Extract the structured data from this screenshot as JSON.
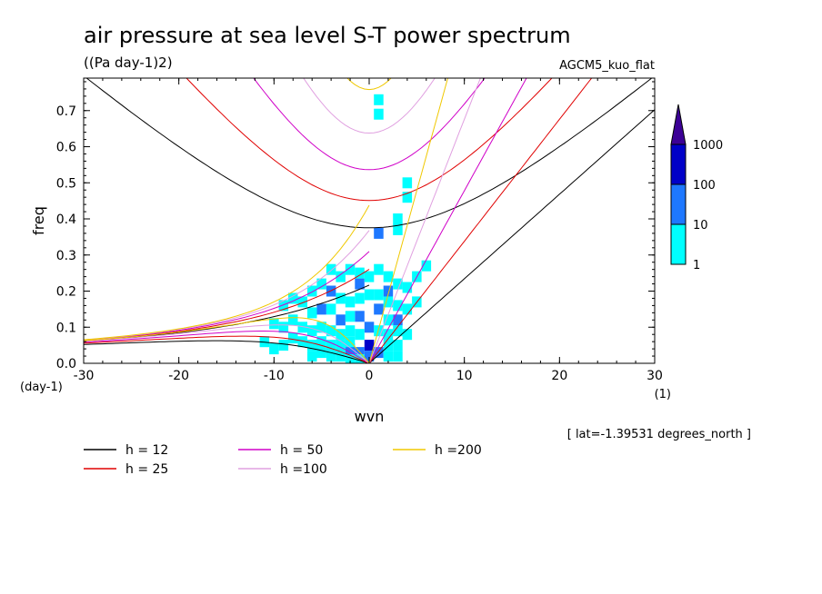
{
  "chart_data": {
    "type": "heatmap",
    "title": "air pressure at sea level S-T power spectrum",
    "subtitle": "((Pa day-1)2)",
    "model_label": "AGCM5_kuo_flat",
    "xlabel": "wvn",
    "ylabel": "freq",
    "x_unit": "(1)",
    "y_unit": "(day-1)",
    "xlim": [
      -30,
      30
    ],
    "ylim": [
      0,
      0.79
    ],
    "x_ticks": [
      "-30",
      "-20",
      "-10",
      "0",
      "10",
      "20",
      "30"
    ],
    "y_ticks": [
      "0.0",
      "0.1",
      "0.2",
      "0.3",
      "0.4",
      "0.5",
      "0.6",
      "0.7"
    ],
    "annotation": "[ lat=-1.39531 degrees_north ]",
    "colorbar": {
      "labels": [
        "1",
        "10",
        "100",
        "1000"
      ],
      "colors": [
        "#00ffff",
        "#1e78ff",
        "#0000c8",
        "#3c0096"
      ]
    },
    "legend": [
      {
        "label": "h = 12",
        "color": "#000000"
      },
      {
        "label": "h = 25",
        "color": "#e00000"
      },
      {
        "label": "h = 50",
        "color": "#d000c8"
      },
      {
        "label": "h =100",
        "color": "#e0a0e0"
      },
      {
        "label": "h =200",
        "color": "#f0c800"
      }
    ],
    "equivalent_depths": [
      12,
      25,
      50,
      100,
      200
    ],
    "spectrum_cells": [
      {
        "x": 0,
        "y": 0.05,
        "level": 3
      },
      {
        "x": -1,
        "y": 0.03,
        "level": 2
      },
      {
        "x": 1,
        "y": 0.03,
        "level": 2
      },
      {
        "x": 0,
        "y": 0.02,
        "level": 2
      },
      {
        "x": -2,
        "y": 0.04,
        "level": 2
      },
      {
        "x": 0,
        "y": 0.1,
        "level": 2
      },
      {
        "x": -1,
        "y": 0.13,
        "level": 2
      },
      {
        "x": -3,
        "y": 0.12,
        "level": 2
      },
      {
        "x": 1,
        "y": 0.15,
        "level": 2
      },
      {
        "x": -1,
        "y": 0.22,
        "level": 2
      },
      {
        "x": -4,
        "y": 0.2,
        "level": 2
      },
      {
        "x": 2,
        "y": 0.2,
        "level": 2
      },
      {
        "x": -5,
        "y": 0.15,
        "level": 2
      },
      {
        "x": 3,
        "y": 0.12,
        "level": 2
      },
      {
        "x": 1,
        "y": 0.36,
        "level": 2
      },
      {
        "x": 1,
        "y": 0.73,
        "level": 1
      },
      {
        "x": 1,
        "y": 0.69,
        "level": 1
      },
      {
        "x": 4,
        "y": 0.5,
        "level": 1
      },
      {
        "x": 4,
        "y": 0.46,
        "level": 1
      },
      {
        "x": 3,
        "y": 0.4,
        "level": 1
      },
      {
        "x": 3,
        "y": 0.37,
        "level": 1
      },
      {
        "x": 6,
        "y": 0.27,
        "level": 1
      },
      {
        "x": 5,
        "y": 0.24,
        "level": 1
      },
      {
        "x": -4,
        "y": 0.26,
        "level": 1
      },
      {
        "x": -3,
        "y": 0.24,
        "level": 1
      },
      {
        "x": -2,
        "y": 0.26,
        "level": 1
      },
      {
        "x": -1,
        "y": 0.25,
        "level": 1
      },
      {
        "x": 0,
        "y": 0.24,
        "level": 1
      },
      {
        "x": 1,
        "y": 0.26,
        "level": 1
      },
      {
        "x": 2,
        "y": 0.24,
        "level": 1
      },
      {
        "x": 3,
        "y": 0.22,
        "level": 1
      },
      {
        "x": 4,
        "y": 0.21,
        "level": 1
      },
      {
        "x": -5,
        "y": 0.22,
        "level": 1
      },
      {
        "x": -6,
        "y": 0.2,
        "level": 1
      },
      {
        "x": -7,
        "y": 0.17,
        "level": 1
      },
      {
        "x": -8,
        "y": 0.18,
        "level": 1
      },
      {
        "x": -9,
        "y": 0.16,
        "level": 1
      },
      {
        "x": -6,
        "y": 0.14,
        "level": 1
      },
      {
        "x": -4,
        "y": 0.15,
        "level": 1
      },
      {
        "x": -3,
        "y": 0.18,
        "level": 1
      },
      {
        "x": -2,
        "y": 0.17,
        "level": 1
      },
      {
        "x": -1,
        "y": 0.18,
        "level": 1
      },
      {
        "x": 0,
        "y": 0.19,
        "level": 1
      },
      {
        "x": 1,
        "y": 0.19,
        "level": 1
      },
      {
        "x": 2,
        "y": 0.17,
        "level": 1
      },
      {
        "x": 3,
        "y": 0.16,
        "level": 1
      },
      {
        "x": 4,
        "y": 0.15,
        "level": 1
      },
      {
        "x": 5,
        "y": 0.17,
        "level": 1
      },
      {
        "x": -10,
        "y": 0.11,
        "level": 1
      },
      {
        "x": -9,
        "y": 0.1,
        "level": 1
      },
      {
        "x": -8,
        "y": 0.12,
        "level": 1
      },
      {
        "x": -7,
        "y": 0.1,
        "level": 1
      },
      {
        "x": -6,
        "y": 0.09,
        "level": 1
      },
      {
        "x": -5,
        "y": 0.1,
        "level": 1
      },
      {
        "x": -4,
        "y": 0.09,
        "level": 1
      },
      {
        "x": -3,
        "y": 0.08,
        "level": 1
      },
      {
        "x": -2,
        "y": 0.09,
        "level": 1
      },
      {
        "x": -1,
        "y": 0.08,
        "level": 1
      },
      {
        "x": 1,
        "y": 0.09,
        "level": 1
      },
      {
        "x": 2,
        "y": 0.08,
        "level": 1
      },
      {
        "x": 3,
        "y": 0.09,
        "level": 1
      },
      {
        "x": 4,
        "y": 0.08,
        "level": 1
      },
      {
        "x": 2,
        "y": 0.12,
        "level": 1
      },
      {
        "x": -2,
        "y": 0.13,
        "level": 1
      },
      {
        "x": -8,
        "y": 0.07,
        "level": 1
      },
      {
        "x": -7,
        "y": 0.06,
        "level": 1
      },
      {
        "x": -6,
        "y": 0.05,
        "level": 1
      },
      {
        "x": -5,
        "y": 0.06,
        "level": 1
      },
      {
        "x": -4,
        "y": 0.05,
        "level": 1
      },
      {
        "x": -3,
        "y": 0.05,
        "level": 1
      },
      {
        "x": -2,
        "y": 0.06,
        "level": 1
      },
      {
        "x": 2,
        "y": 0.05,
        "level": 1
      },
      {
        "x": 3,
        "y": 0.05,
        "level": 1
      },
      {
        "x": -10,
        "y": 0.04,
        "level": 1
      },
      {
        "x": -9,
        "y": 0.05,
        "level": 1
      },
      {
        "x": -11,
        "y": 0.06,
        "level": 1
      },
      {
        "x": -4,
        "y": 0.02,
        "level": 1
      },
      {
        "x": -3,
        "y": 0.02,
        "level": 1
      },
      {
        "x": -2,
        "y": 0.01,
        "level": 1
      },
      {
        "x": -1,
        "y": 0.01,
        "level": 1
      },
      {
        "x": 2,
        "y": 0.02,
        "level": 1
      },
      {
        "x": 3,
        "y": 0.02,
        "level": 1
      },
      {
        "x": -5,
        "y": 0.03,
        "level": 1
      },
      {
        "x": -6,
        "y": 0.02,
        "level": 1
      }
    ]
  }
}
